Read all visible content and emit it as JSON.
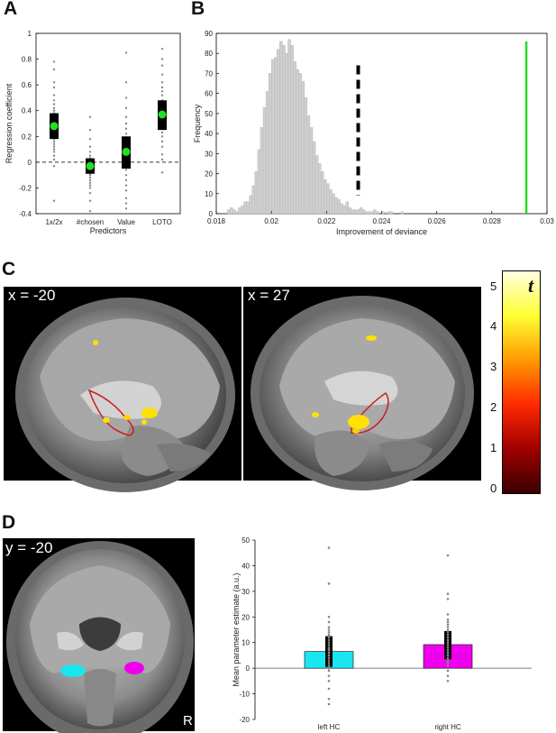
{
  "panels": {
    "a": {
      "letter": "A"
    },
    "b": {
      "letter": "B"
    },
    "c": {
      "letter": "C",
      "left_label": "x = -20",
      "right_label": "x = 27"
    },
    "d": {
      "letter": "D",
      "brain_label": "y = -20",
      "side_label": "R"
    }
  },
  "colorbar": {
    "title": "t",
    "ticks": [
      "5",
      "4",
      "3",
      "2",
      "1",
      "0"
    ],
    "range": [
      0,
      5.5
    ],
    "colors": [
      "#3a0000",
      "#a00000",
      "#ff2a00",
      "#ff9a00",
      "#ffff33",
      "#ffffe0"
    ]
  },
  "colors": {
    "green_marker": "#22dd22",
    "left_hc": "#19e6f0",
    "right_hc": "#ee00ee",
    "roi_outline": "#cc2020",
    "activation": "#ffe000"
  },
  "chart_data": [
    {
      "id": "A",
      "type": "scatter",
      "xlabel": "Predictors",
      "ylabel": "Regression coefficient",
      "ylim": [
        -0.4,
        1
      ],
      "yticks": [
        "-0.4",
        "-0.2",
        "0",
        "0.2",
        "0.4",
        "0.6",
        "0.8",
        "1"
      ],
      "categories": [
        "1x/2x",
        "#chosen",
        "Value",
        "LOTO"
      ],
      "means": [
        0.28,
        -0.03,
        0.08,
        0.37
      ],
      "sem_box": [
        [
          0.18,
          0.38
        ],
        [
          -0.09,
          0.03
        ],
        [
          -0.05,
          0.2
        ],
        [
          0.25,
          0.48
        ]
      ],
      "points": [
        [
          0.78,
          0.72,
          0.62,
          0.58,
          0.52,
          0.48,
          0.45,
          0.42,
          0.4,
          0.38,
          0.36,
          0.34,
          0.32,
          0.3,
          0.28,
          0.26,
          0.24,
          0.22,
          0.2,
          0.18,
          0.16,
          0.14,
          0.12,
          0.1,
          0.08,
          0.05,
          0.02,
          -0.03,
          -0.3
        ],
        [
          0.35,
          0.25,
          0.18,
          0.12,
          0.08,
          0.05,
          0.03,
          0.01,
          -0.01,
          -0.03,
          -0.05,
          -0.07,
          -0.09,
          -0.1,
          -0.12,
          -0.14,
          -0.16,
          -0.18,
          -0.2,
          -0.24,
          -0.3,
          -0.38
        ],
        [
          0.85,
          0.62,
          0.5,
          0.42,
          0.35,
          0.3,
          0.26,
          0.22,
          0.18,
          0.15,
          0.12,
          0.1,
          0.08,
          0.05,
          0.02,
          0,
          -0.03,
          -0.06,
          -0.1,
          -0.14,
          -0.18,
          -0.22,
          -0.28,
          -0.32,
          -0.36
        ],
        [
          0.88,
          0.8,
          0.75,
          0.68,
          0.62,
          0.58,
          0.55,
          0.52,
          0.48,
          0.45,
          0.42,
          0.4,
          0.38,
          0.36,
          0.34,
          0.32,
          0.3,
          0.28,
          0.26,
          0.23,
          0.2,
          0.16,
          0.12,
          0.06,
          0.02,
          -0.08
        ]
      ],
      "reference_line": 0
    },
    {
      "id": "B",
      "type": "bar",
      "xlabel": "Improvement of deviance",
      "ylabel": "Frequency",
      "xlim": [
        0.018,
        0.03
      ],
      "ylim": [
        0,
        90
      ],
      "xticks": [
        "0.018",
        "0.02",
        "0.022",
        "0.024",
        "0.026",
        "0.028",
        "0.03"
      ],
      "yticks": [
        "0",
        "10",
        "20",
        "30",
        "40",
        "50",
        "60",
        "70",
        "80",
        "90"
      ],
      "bin_start": 0.0184,
      "bin_width": 0.0001,
      "values": [
        2,
        3,
        2,
        1,
        3,
        4,
        6,
        6,
        9,
        14,
        21,
        32,
        43,
        53,
        61,
        70,
        77,
        78,
        82,
        86,
        84,
        80,
        87,
        84,
        76,
        72,
        70,
        66,
        58,
        49,
        43,
        36,
        29,
        25,
        21,
        17,
        15,
        12,
        10,
        8,
        7,
        5,
        4,
        6,
        3,
        2,
        2,
        2,
        3,
        2,
        1,
        1,
        1,
        2,
        1,
        0,
        1,
        0,
        1,
        1,
        0,
        0,
        0,
        1
      ],
      "dashed_threshold": 0.02315,
      "observed_value": 0.02925
    },
    {
      "id": "D",
      "type": "bar",
      "ylabel": "Mean parameter estimate (a.u.)",
      "ylim": [
        -20,
        50
      ],
      "yticks": [
        "-20",
        "-10",
        "0",
        "10",
        "20",
        "30",
        "40",
        "50"
      ],
      "categories": [
        "left HC",
        "right HC"
      ],
      "values": [
        6.5,
        9.2
      ],
      "error": [
        [
          0.5,
          12.5
        ],
        [
          3.5,
          14.5
        ]
      ],
      "points": [
        [
          47,
          33,
          20,
          18,
          16,
          15,
          14,
          13,
          12,
          11,
          10,
          9,
          8,
          7.5,
          7,
          6,
          5,
          4,
          3,
          2,
          1,
          0,
          -1,
          -3,
          -5,
          -8,
          -12,
          -14
        ],
        [
          44,
          29,
          27,
          21,
          19,
          18,
          17,
          16,
          15,
          14,
          13,
          12,
          11,
          10,
          9,
          8,
          7,
          6,
          5,
          4,
          3,
          2,
          1,
          -1,
          -3,
          -5
        ]
      ],
      "reference_line": 0
    }
  ]
}
